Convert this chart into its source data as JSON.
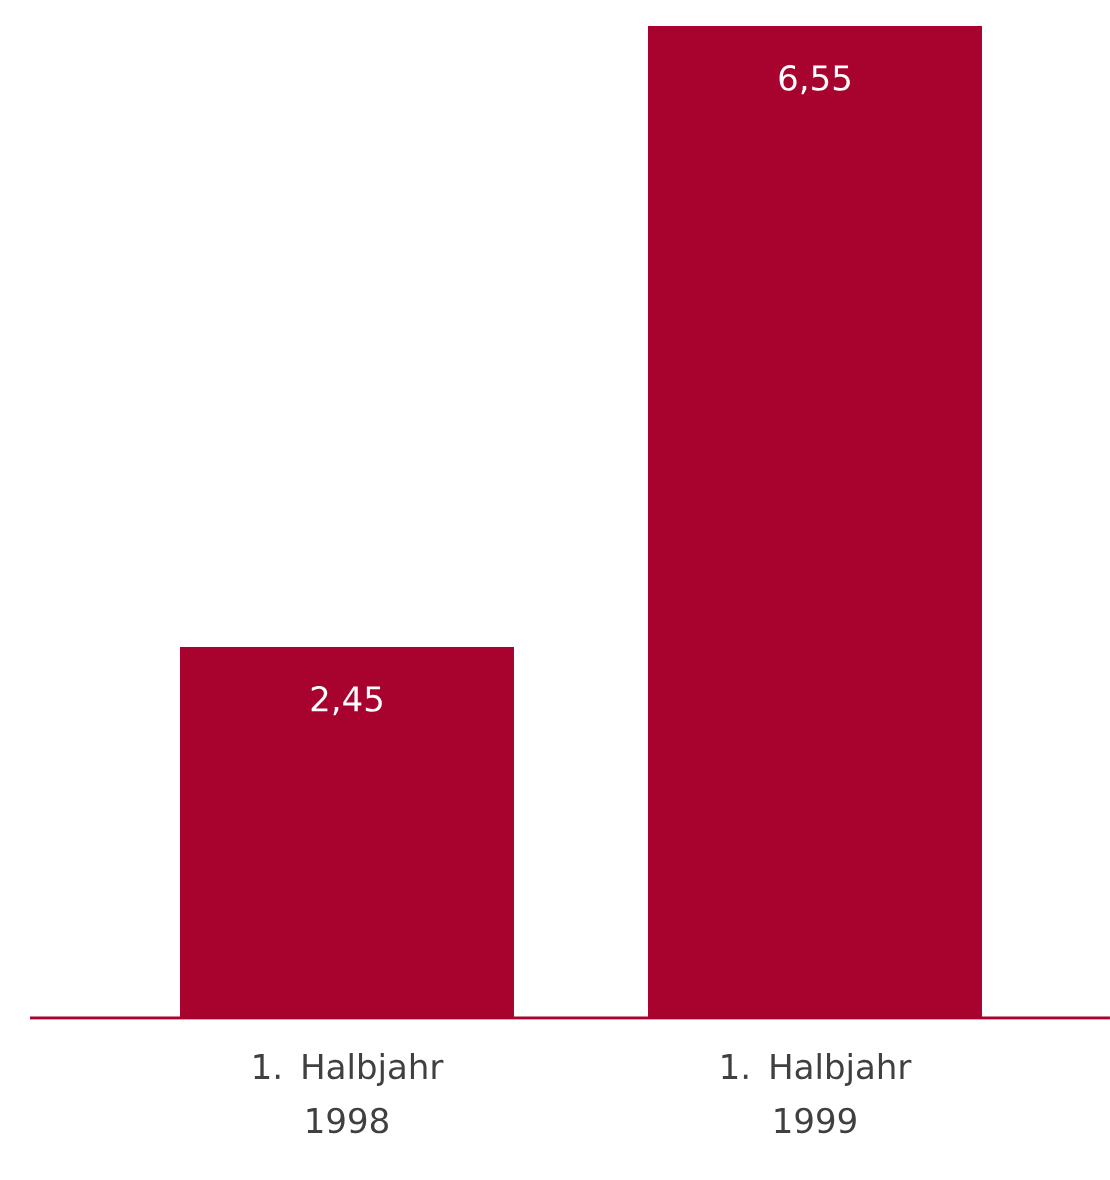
{
  "chart_data": {
    "type": "bar",
    "categories": [
      "1. Halbjahr 1998",
      "1. Halbjahr 1999"
    ],
    "values": [
      2.45,
      6.55
    ],
    "value_labels": [
      "2,45",
      "6,55"
    ],
    "color": "#a8032f"
  }
}
